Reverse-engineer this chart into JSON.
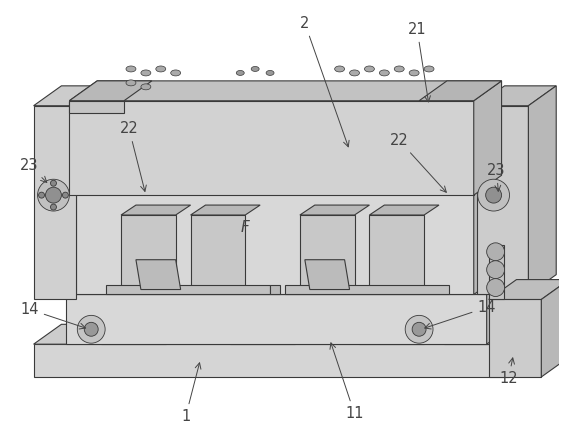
{
  "bg_color": "#ffffff",
  "line_color": "#3a3a3a",
  "lw": 0.8,
  "fig_width": 5.61,
  "fig_height": 4.33,
  "dpi": 100,
  "annotation_color": "#444444",
  "font_size": 10.5,
  "light_face": "#e2e2e2",
  "mid_face": "#cccccc",
  "dark_face": "#b8b8b8",
  "darker_face": "#a8a8a8"
}
